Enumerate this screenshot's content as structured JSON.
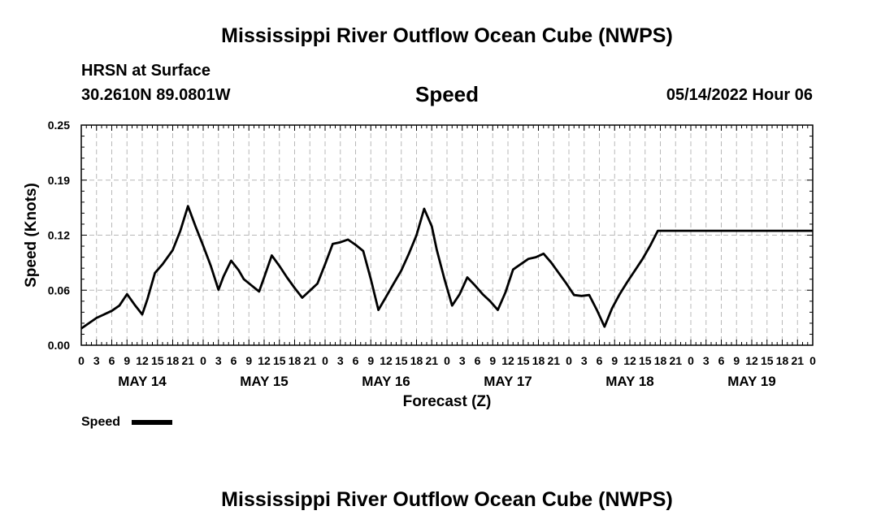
{
  "page": {
    "title": "Mississippi River Outflow Ocean Cube (NWPS)",
    "station": "HRSN at Surface",
    "coords": "30.2610N  89.0801W",
    "variable": "Speed",
    "datetime": "05/14/2022 Hour 06",
    "footer_title": "Mississippi River Outflow Ocean Cube (NWPS)"
  },
  "chart_data": {
    "type": "line",
    "xlabel": "Forecast (Z)",
    "ylabel": "Speed (Knots)",
    "ylim": [
      0,
      0.25
    ],
    "y_ticks": [
      "0.00",
      "0.06",
      "0.12",
      "0.19",
      "0.25"
    ],
    "y_tick_values": [
      0,
      0.0625,
      0.125,
      0.1875,
      0.25
    ],
    "xlim": [
      0,
      144
    ],
    "x_tick_labels": [
      "0",
      "3",
      "6",
      "9",
      "12",
      "15",
      "18",
      "21",
      "0",
      "3",
      "6",
      "9",
      "12",
      "15",
      "18",
      "21",
      "0",
      "3",
      "6",
      "9",
      "12",
      "15",
      "18",
      "21",
      "0",
      "3",
      "6",
      "9",
      "12",
      "15",
      "18",
      "21",
      "0",
      "3",
      "6",
      "9",
      "12",
      "15",
      "18",
      "21",
      "0",
      "3",
      "6",
      "9",
      "12",
      "15",
      "18",
      "21",
      "0"
    ],
    "day_labels": [
      "MAY 14",
      "MAY 15",
      "MAY 16",
      "MAY 17",
      "MAY 18",
      "MAY 19"
    ],
    "grid": true,
    "legend": "bottom-left",
    "series": [
      {
        "name": "Speed",
        "color": "#000000",
        "x": [
          0,
          3,
          6,
          7.5,
          9,
          10.5,
          12,
          13,
          14.5,
          16,
          18,
          19.5,
          21,
          22.5,
          24,
          25.5,
          27,
          28,
          29.5,
          31,
          32,
          33.5,
          35,
          36,
          37.5,
          39,
          40.5,
          42,
          43.5,
          45,
          46.5,
          48,
          49.5,
          51,
          52.5,
          54,
          55.5,
          57,
          58.5,
          60,
          61.5,
          63,
          64.5,
          66,
          67.5,
          69,
          70,
          71.5,
          73,
          74.5,
          76,
          77.5,
          79,
          80.5,
          82,
          83.5,
          85,
          86.5,
          88,
          89.5,
          91,
          92.5,
          94,
          95.5,
          97,
          98.5,
          100,
          101.5,
          103,
          104.5,
          106,
          107.5,
          109,
          110.5,
          112,
          113.5,
          115,
          117,
          120,
          144
        ],
        "y": [
          0.019,
          0.031,
          0.039,
          0.045,
          0.058,
          0.046,
          0.035,
          0.052,
          0.082,
          0.092,
          0.108,
          0.13,
          0.158,
          0.135,
          0.113,
          0.09,
          0.063,
          0.078,
          0.096,
          0.085,
          0.075,
          0.068,
          0.061,
          0.077,
          0.102,
          0.09,
          0.077,
          0.065,
          0.054,
          0.062,
          0.07,
          0.092,
          0.115,
          0.117,
          0.12,
          0.114,
          0.107,
          0.075,
          0.04,
          0.055,
          0.07,
          0.085,
          0.104,
          0.125,
          0.155,
          0.135,
          0.108,
          0.075,
          0.045,
          0.058,
          0.077,
          0.068,
          0.058,
          0.05,
          0.04,
          0.06,
          0.086,
          0.092,
          0.098,
          0.1,
          0.104,
          0.094,
          0.082,
          0.07,
          0.057,
          0.056,
          0.057,
          0.04,
          0.021,
          0.042,
          0.058,
          0.072,
          0.085,
          0.098,
          0.113,
          0.13,
          0.13,
          0.13,
          0.13,
          0.13
        ]
      }
    ]
  }
}
